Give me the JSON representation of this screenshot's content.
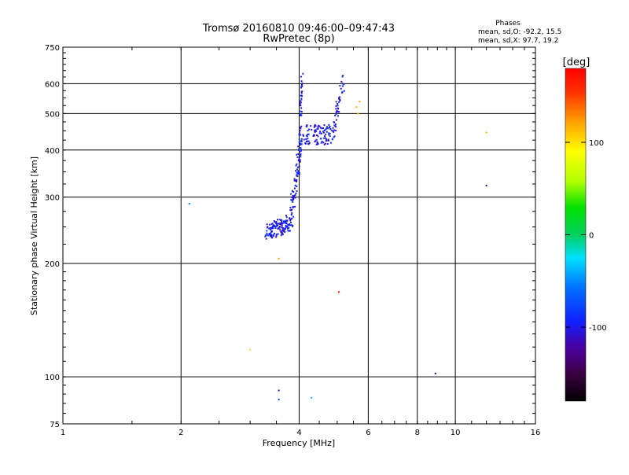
{
  "header": {
    "title": "Tromsø 20160810 09:46:00–09:47:43",
    "subtitle": "RwPretec (8p)",
    "stats_title": "Phases",
    "stats_o": "mean, sd,O: -92.2, 15.5",
    "stats_x": "mean, sd,X:  97.7, 19.2"
  },
  "chart_data": {
    "type": "scatter",
    "title": "Tromsø 20160810 09:46:00–09:47:43",
    "subtitle": "RwPretec (8p)",
    "xlabel": "Frequency [MHz]",
    "ylabel": "Stationary phase Virtual Height [km]",
    "x_scale": "log",
    "y_scale": "log",
    "xlim": [
      1,
      16
    ],
    "ylim": [
      75,
      750
    ],
    "x_ticks": [
      1,
      2,
      4,
      6,
      8,
      10,
      16
    ],
    "x_tick_labels": [
      "1",
      "2",
      "4",
      "6",
      "8",
      "10",
      "16"
    ],
    "y_ticks": [
      75,
      100,
      200,
      300,
      400,
      500,
      600,
      750
    ],
    "y_tick_labels": [
      "75",
      "100",
      "200",
      "300",
      "400",
      "500",
      "600",
      "750"
    ],
    "grid": true,
    "colorbar": {
      "label": "[deg]",
      "min": -180,
      "max": 180,
      "ticks": [
        -100,
        0,
        100
      ],
      "tick_labels": [
        "-100",
        "0",
        "100"
      ]
    },
    "trace": {
      "phase": -100,
      "segments": [
        {
          "f_start": 3.3,
          "f_end": 3.8,
          "h_start": 240,
          "h_end": 258,
          "n": 130,
          "f_spread": 0.02,
          "h_spread": 0.05
        },
        {
          "f_start": 3.8,
          "f_end": 4.05,
          "h_start": 260,
          "h_end": 420,
          "n": 90,
          "f_spread": 0.012,
          "h_spread": 0.06
        },
        {
          "f_start": 4.02,
          "f_end": 4.07,
          "h_start": 420,
          "h_end": 640,
          "n": 40,
          "f_spread": 0.006,
          "h_spread": 0.05
        },
        {
          "f_start": 4.1,
          "f_end": 4.9,
          "h_start": 440,
          "h_end": 440,
          "n": 110,
          "f_spread": 0.02,
          "h_spread": 0.06
        },
        {
          "f_start": 4.9,
          "f_end": 5.2,
          "h_start": 470,
          "h_end": 610,
          "n": 40,
          "f_spread": 0.01,
          "h_spread": 0.05
        }
      ]
    },
    "points": [
      {
        "f": 2.1,
        "h": 288,
        "phase": -55
      },
      {
        "f": 3.0,
        "h": 118,
        "phase": 100
      },
      {
        "f": 3.55,
        "h": 92,
        "phase": -120
      },
      {
        "f": 3.55,
        "h": 87,
        "phase": -80
      },
      {
        "f": 3.55,
        "h": 206,
        "phase": 120
      },
      {
        "f": 4.3,
        "h": 88,
        "phase": -40
      },
      {
        "f": 5.05,
        "h": 168,
        "phase": 170
      },
      {
        "f": 5.6,
        "h": 520,
        "phase": 115
      },
      {
        "f": 5.65,
        "h": 500,
        "phase": 110
      },
      {
        "f": 5.7,
        "h": 538,
        "phase": 120
      },
      {
        "f": 8.9,
        "h": 102,
        "phase": -130
      },
      {
        "f": 12.0,
        "h": 445,
        "phase": 110
      },
      {
        "f": 12.0,
        "h": 322,
        "phase": -130
      }
    ]
  }
}
